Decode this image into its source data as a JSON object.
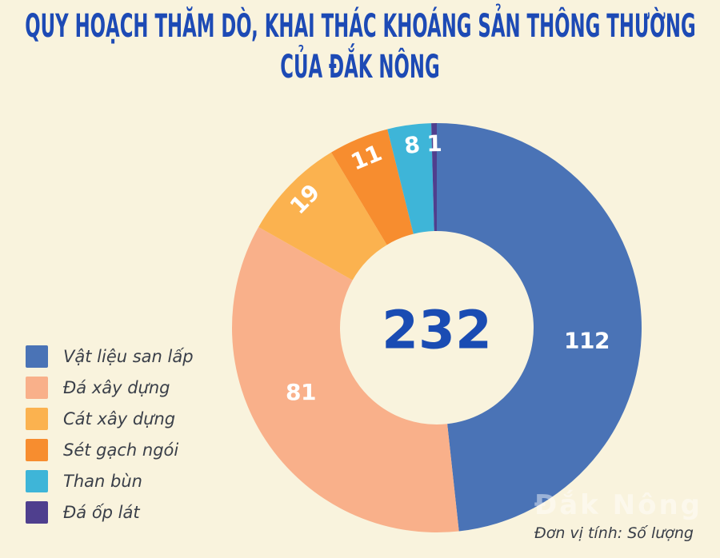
{
  "title": {
    "line1": "QUY HOẠCH THĂM DÒ, KHAI THÁC KHOÁNG SẢN THÔNG THƯỜNG",
    "line2": "CỦA ĐẮK NÔNG"
  },
  "chart_data": {
    "type": "pie",
    "subtype": "donut",
    "title": "QUY HOẠCH THĂM DÒ, KHAI THÁC KHOÁNG SẢN THÔNG THƯỜNG CỦA ĐẮK NÔNG",
    "center_total": "232",
    "total": 232,
    "unit_note": "Đơn vị tính: Số lượng",
    "start_angle_deg": 0,
    "direction": "clockwise",
    "legend_position": "left",
    "series": [
      {
        "name": "Vật liệu san lấp",
        "value": 112,
        "color": "#4a73b6"
      },
      {
        "name": "Đá xây dựng",
        "value": 81,
        "color": "#f9b08a"
      },
      {
        "name": "Cát xây dựng",
        "value": 19,
        "color": "#fbb24f"
      },
      {
        "name": "Sét gạch ngói",
        "value": 11,
        "color": "#f78d2f"
      },
      {
        "name": "Than bùn",
        "value": 8,
        "color": "#3eb5d8"
      },
      {
        "name": "Đá ốp lát",
        "value": 1,
        "color": "#4f3f8e"
      }
    ]
  },
  "footer": {
    "unit_note": "Đơn vị tính: Số lượng"
  },
  "watermark": {
    "text": "Đắk Nông"
  },
  "colors": {
    "background": "#f9f3dd",
    "title": "#1d4ab5",
    "center_value": "#1a4cb3",
    "legend_text": "#3a3f49",
    "slice_label": "#ffffff"
  }
}
